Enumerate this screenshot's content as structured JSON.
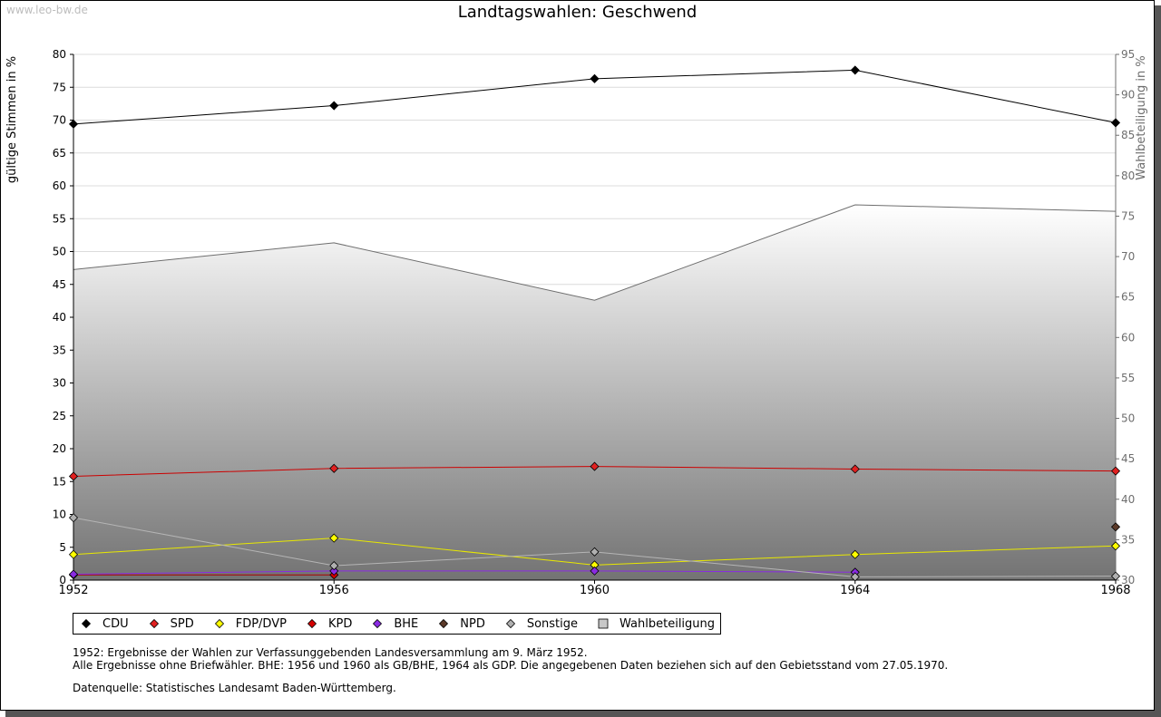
{
  "watermark": "www.leo-bw.de",
  "chart_data": {
    "type": "line",
    "title": "Landtagswahlen: Geschwend",
    "ylabel": "gültige Stimmen in %",
    "y2label": "Wahlbeteiligung in %",
    "ylim": [
      0,
      80
    ],
    "y2lim": [
      30,
      95
    ],
    "yticks": [
      "0",
      "5",
      "10",
      "15",
      "20",
      "25",
      "30",
      "35",
      "40",
      "45",
      "50",
      "55",
      "60",
      "65",
      "70",
      "75",
      "80"
    ],
    "y2ticks": [
      "30",
      "35",
      "40",
      "45",
      "50",
      "55",
      "60",
      "65",
      "70",
      "75",
      "80",
      "85",
      "90",
      "95"
    ],
    "x": [
      "1952",
      "1956",
      "1960",
      "1964",
      "1968"
    ],
    "grid": true,
    "legend_position": "bottom",
    "series": [
      {
        "name": "CDU",
        "color": "#000000",
        "line_color": "#000000",
        "values": [
          69.4,
          72.2,
          76.3,
          77.6,
          69.6
        ]
      },
      {
        "name": "SPD",
        "color": "#e02020",
        "line_color": "#cc0000",
        "values": [
          15.8,
          17.0,
          17.3,
          16.9,
          16.6
        ]
      },
      {
        "name": "FDP/DVP",
        "color": "#ffff00",
        "line_color": "#e8e800",
        "values": [
          3.9,
          6.4,
          2.3,
          3.9,
          5.2
        ]
      },
      {
        "name": "KPD",
        "color": "#d40000",
        "line_color": "#aa0000",
        "values": [
          0.8,
          0.8,
          null,
          null,
          null
        ]
      },
      {
        "name": "BHE",
        "color": "#8a2be2",
        "line_color": "#8a2be2",
        "values": [
          0.9,
          1.4,
          1.4,
          1.2,
          null
        ]
      },
      {
        "name": "NPD",
        "color": "#5b3a29",
        "line_color": "#5b3a29",
        "values": [
          null,
          null,
          null,
          null,
          8.1
        ]
      },
      {
        "name": "Sonstige",
        "color": "#b0b0b0",
        "line_color": "#b5b5b5",
        "values": [
          9.5,
          2.2,
          4.3,
          0.5,
          0.6
        ]
      },
      {
        "name": "Wahlbeteiligung",
        "axis": "right",
        "type": "area",
        "color": "#c8c8c8",
        "values": [
          68.4,
          71.7,
          64.6,
          76.4,
          75.6
        ]
      }
    ]
  },
  "notes": [
    "1952: Ergebnisse der Wahlen zur Verfassunggebenden Landesversammlung am 9. März 1952.",
    "Alle Ergebnisse ohne Briefwähler. BHE: 1956 und 1960 als GB/BHE, 1964 als GDP. Die angegebenen Daten beziehen sich auf den Gebietsstand vom 27.05.1970."
  ],
  "source": "Datenquelle: Statistisches Landesamt Baden-Württemberg."
}
